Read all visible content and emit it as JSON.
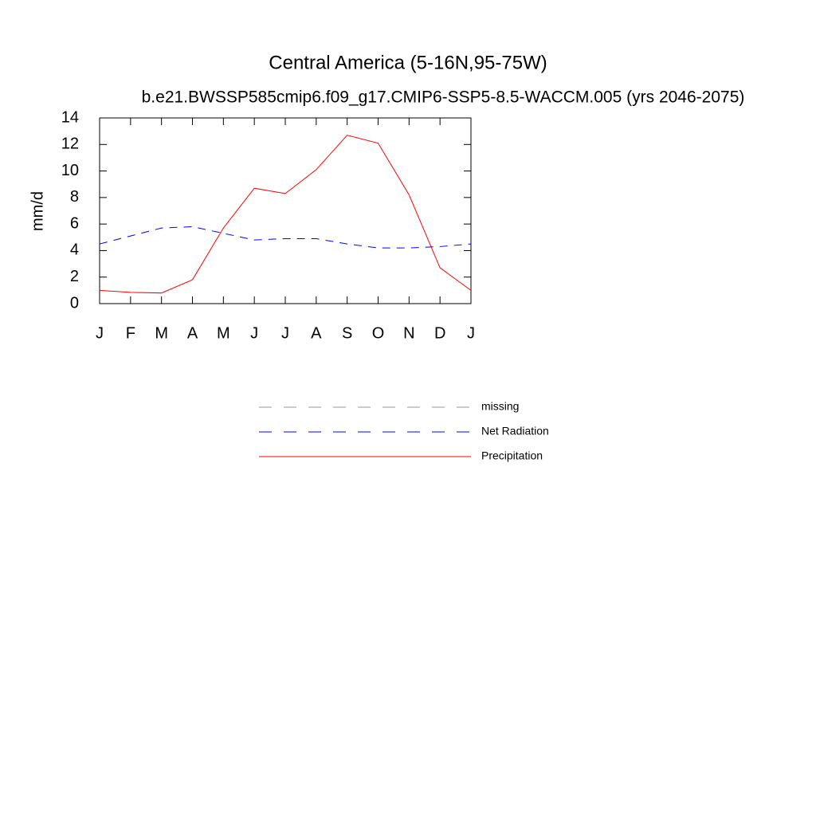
{
  "chart_data": {
    "type": "line",
    "title": "Central America (5-16N,95-75W)",
    "subtitle": "b.e21.BWSSP585cmip6.f09_g17.CMIP6-SSP5-8.5-WACCM.005 (yrs 2046-2075)",
    "y_label": "mm/d",
    "categories": [
      "J",
      "F",
      "M",
      "A",
      "M",
      "J",
      "J",
      "A",
      "S",
      "O",
      "N",
      "D",
      "J"
    ],
    "series": [
      {
        "name": "missing",
        "color": "#999999",
        "dashed": true,
        "values": [
          null,
          null,
          null,
          null,
          null,
          null,
          null,
          null,
          null,
          null,
          null,
          null,
          null
        ]
      },
      {
        "name": "Net Radiation",
        "color": "#0000ff",
        "dashed": true,
        "values": [
          4.5,
          5.1,
          5.7,
          5.8,
          5.3,
          4.8,
          4.9,
          4.9,
          4.5,
          4.2,
          4.2,
          4.3,
          4.5
        ]
      },
      {
        "name": "Precipitation",
        "color": "#ff0000",
        "dashed": false,
        "values": [
          1.0,
          0.85,
          0.8,
          1.8,
          5.7,
          8.7,
          8.3,
          10.1,
          12.7,
          12.1,
          8.2,
          2.7,
          1.0
        ]
      }
    ],
    "ylim": [
      0,
      14
    ],
    "yticks": [
      0,
      2,
      4,
      6,
      8,
      10,
      12,
      14
    ],
    "grid": false
  }
}
